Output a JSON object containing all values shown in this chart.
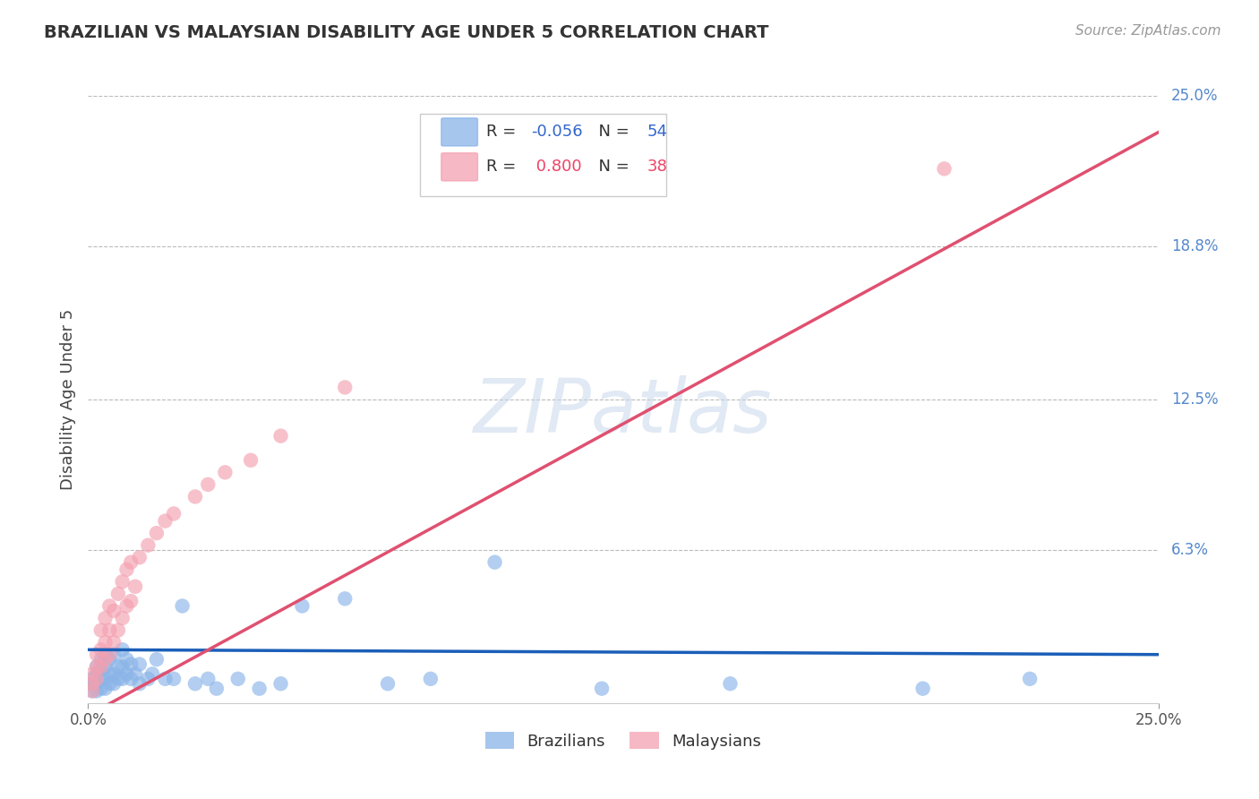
{
  "title": "BRAZILIAN VS MALAYSIAN DISABILITY AGE UNDER 5 CORRELATION CHART",
  "source": "Source: ZipAtlas.com",
  "ylabel": "Disability Age Under 5",
  "xlim": [
    0.0,
    0.25
  ],
  "ylim": [
    0.0,
    0.25
  ],
  "r_brazilian": -0.056,
  "n_brazilian": 54,
  "r_malaysian": 0.8,
  "n_malaysian": 38,
  "color_brazilian": "#8ab4e8",
  "color_malaysian": "#f4a0b0",
  "line_color_brazilian": "#1a5eb8",
  "line_color_malaysian": "#e05070",
  "watermark": "ZIPatlas",
  "brazilians_x": [
    0.001,
    0.001,
    0.001,
    0.002,
    0.002,
    0.002,
    0.002,
    0.003,
    0.003,
    0.003,
    0.003,
    0.004,
    0.004,
    0.004,
    0.004,
    0.005,
    0.005,
    0.005,
    0.006,
    0.006,
    0.006,
    0.007,
    0.007,
    0.008,
    0.008,
    0.008,
    0.009,
    0.009,
    0.01,
    0.01,
    0.011,
    0.012,
    0.012,
    0.014,
    0.015,
    0.016,
    0.018,
    0.02,
    0.022,
    0.025,
    0.028,
    0.03,
    0.035,
    0.04,
    0.045,
    0.05,
    0.06,
    0.07,
    0.08,
    0.095,
    0.12,
    0.15,
    0.195,
    0.22
  ],
  "brazilians_y": [
    0.005,
    0.008,
    0.01,
    0.005,
    0.008,
    0.012,
    0.015,
    0.006,
    0.01,
    0.014,
    0.018,
    0.006,
    0.01,
    0.015,
    0.02,
    0.008,
    0.012,
    0.018,
    0.008,
    0.012,
    0.02,
    0.01,
    0.015,
    0.01,
    0.015,
    0.022,
    0.012,
    0.018,
    0.01,
    0.016,
    0.012,
    0.008,
    0.016,
    0.01,
    0.012,
    0.018,
    0.01,
    0.01,
    0.04,
    0.008,
    0.01,
    0.006,
    0.01,
    0.006,
    0.008,
    0.04,
    0.043,
    0.008,
    0.01,
    0.058,
    0.006,
    0.008,
    0.006,
    0.01
  ],
  "malaysians_x": [
    0.001,
    0.001,
    0.001,
    0.002,
    0.002,
    0.002,
    0.003,
    0.003,
    0.003,
    0.004,
    0.004,
    0.004,
    0.005,
    0.005,
    0.005,
    0.006,
    0.006,
    0.007,
    0.007,
    0.008,
    0.008,
    0.009,
    0.009,
    0.01,
    0.01,
    0.011,
    0.012,
    0.014,
    0.016,
    0.018,
    0.02,
    0.025,
    0.028,
    0.032,
    0.038,
    0.045,
    0.06,
    0.2
  ],
  "malaysians_y": [
    0.005,
    0.008,
    0.012,
    0.01,
    0.015,
    0.02,
    0.015,
    0.022,
    0.03,
    0.018,
    0.025,
    0.035,
    0.02,
    0.03,
    0.04,
    0.025,
    0.038,
    0.03,
    0.045,
    0.035,
    0.05,
    0.04,
    0.055,
    0.042,
    0.058,
    0.048,
    0.06,
    0.065,
    0.07,
    0.075,
    0.078,
    0.085,
    0.09,
    0.095,
    0.1,
    0.11,
    0.13,
    0.22
  ],
  "malay_line_x0": 0.0,
  "malay_line_y0": -0.005,
  "malay_line_x1": 0.25,
  "malay_line_y1": 0.235,
  "braz_line_x0": 0.0,
  "braz_line_y0": 0.022,
  "braz_line_x1": 0.25,
  "braz_line_y1": 0.02
}
